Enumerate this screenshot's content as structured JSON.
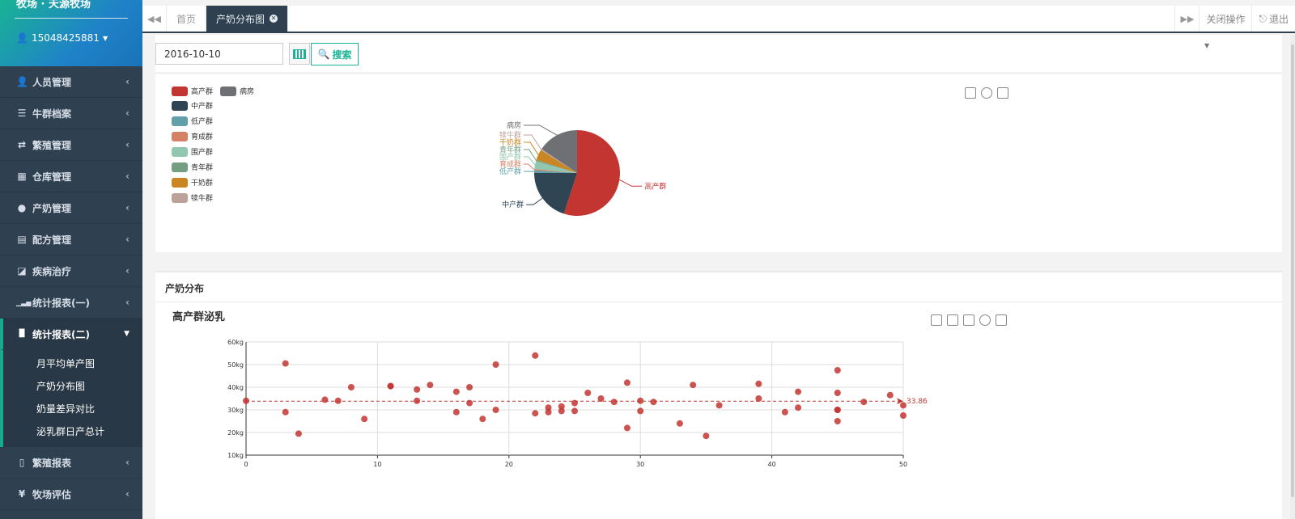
{
  "sidebar": {
    "farm_name": "牧场 · 天源牧场",
    "user": "15048425881",
    "menu": [
      {
        "icon": "user-icon",
        "glyph": "👤",
        "label": "人员管理"
      },
      {
        "icon": "list-icon",
        "glyph": "☰",
        "label": "牛群档案"
      },
      {
        "icon": "retweet-icon",
        "glyph": "⇄",
        "label": "繁殖管理"
      },
      {
        "icon": "warehouse-icon",
        "glyph": "▦",
        "label": "仓库管理"
      },
      {
        "icon": "drop-icon",
        "glyph": "●",
        "label": "产奶管理"
      },
      {
        "icon": "recipe-icon",
        "glyph": "▤",
        "label": "配方管理"
      },
      {
        "icon": "eraser-icon",
        "glyph": "◪",
        "label": "疾病治疗"
      },
      {
        "icon": "signal-icon",
        "glyph": "▁▃▅",
        "label": "统计报表(一)"
      },
      {
        "icon": "bar-chart-icon",
        "glyph": "▐▌",
        "label": "统计报表(二)"
      },
      {
        "icon": "file-icon",
        "glyph": "▯",
        "label": "繁殖报表"
      },
      {
        "icon": "yen-icon",
        "glyph": "¥",
        "label": "牧场评估"
      }
    ],
    "submenu": [
      "月平均单产图",
      "产奶分布图",
      "奶量差异对比",
      "泌乳群日产总计"
    ]
  },
  "tabs": {
    "home": "首页",
    "active": "产奶分布图",
    "close_ops": "关闭操作",
    "logout": "退出"
  },
  "search": {
    "date_value": "2016-10-10",
    "button_label": "搜索"
  },
  "pie_chart": {
    "legend": [
      {
        "name": "高产群",
        "color": "#c23531"
      },
      {
        "name": "病房",
        "color": "#6e7074"
      },
      {
        "name": "中产群",
        "color": "#2f4554"
      },
      {
        "name": "低产群",
        "color": "#61a0a8"
      },
      {
        "name": "育成群",
        "color": "#d48265"
      },
      {
        "name": "围产群",
        "color": "#91c7ae"
      },
      {
        "name": "青年群",
        "color": "#749f83"
      },
      {
        "name": "干奶群",
        "color": "#ca8622"
      },
      {
        "name": "犊牛群",
        "color": "#bda29a"
      }
    ]
  },
  "panel2": {
    "title": "产奶分布"
  },
  "chart_data": [
    {
      "type": "pie",
      "slices": [
        {
          "name": "高产群",
          "value": 55,
          "color": "#c23531"
        },
        {
          "name": "中产群",
          "value": 20,
          "color": "#2f4554"
        },
        {
          "name": "低产群",
          "value": 1,
          "color": "#61a0a8"
        },
        {
          "name": "育成群",
          "value": 0.5,
          "color": "#d48265"
        },
        {
          "name": "围产群",
          "value": 3,
          "color": "#91c7ae"
        },
        {
          "name": "青年群",
          "value": 0.5,
          "color": "#749f83"
        },
        {
          "name": "干奶群",
          "value": 4,
          "color": "#ca8622"
        },
        {
          "name": "犊牛群",
          "value": 0.5,
          "color": "#bda29a"
        },
        {
          "name": "病房",
          "value": 15.5,
          "color": "#6e7074"
        }
      ]
    },
    {
      "type": "scatter",
      "title": "高产群泌乳",
      "xlim": [
        0,
        50
      ],
      "ylim": [
        10,
        60
      ],
      "xticks": [
        0,
        10,
        20,
        30,
        40,
        50
      ],
      "yticks": [
        "10kg",
        "20kg",
        "30kg",
        "40kg",
        "50kg",
        "60kg"
      ],
      "yticks_values": [
        10,
        20,
        30,
        40,
        50,
        60
      ],
      "average_line": 33.86,
      "average_label": "33.86",
      "color": "#c23531",
      "points": [
        [
          0,
          34
        ],
        [
          3,
          50.5
        ],
        [
          3,
          29
        ],
        [
          4,
          19.5
        ],
        [
          6,
          34.5
        ],
        [
          7,
          34
        ],
        [
          8,
          40
        ],
        [
          9,
          26
        ],
        [
          11,
          40.5
        ],
        [
          11,
          40.5
        ],
        [
          13,
          39
        ],
        [
          13,
          34
        ],
        [
          14,
          41
        ],
        [
          16,
          38
        ],
        [
          16,
          29
        ],
        [
          17,
          40
        ],
        [
          17,
          33
        ],
        [
          18,
          26
        ],
        [
          19,
          50
        ],
        [
          19,
          30
        ],
        [
          22,
          54
        ],
        [
          22,
          28.5
        ],
        [
          23,
          31
        ],
        [
          23,
          29
        ],
        [
          24,
          31.5
        ],
        [
          24,
          29.5
        ],
        [
          25,
          33
        ],
        [
          25,
          29.5
        ],
        [
          26,
          37.5
        ],
        [
          27,
          35
        ],
        [
          28,
          33.5
        ],
        [
          29,
          42
        ],
        [
          29,
          22
        ],
        [
          30,
          34
        ],
        [
          30,
          29.5
        ],
        [
          31,
          33.5
        ],
        [
          33,
          24
        ],
        [
          34,
          41
        ],
        [
          35,
          18.5
        ],
        [
          36,
          32
        ],
        [
          39,
          41.5
        ],
        [
          39,
          35
        ],
        [
          41,
          29
        ],
        [
          42,
          38
        ],
        [
          42,
          31
        ],
        [
          45,
          47.5
        ],
        [
          45,
          37.5
        ],
        [
          45,
          30
        ],
        [
          45,
          30
        ],
        [
          45,
          25
        ],
        [
          47,
          33.5
        ],
        [
          49,
          36.5
        ],
        [
          50,
          32
        ],
        [
          50,
          27.5
        ]
      ]
    }
  ]
}
